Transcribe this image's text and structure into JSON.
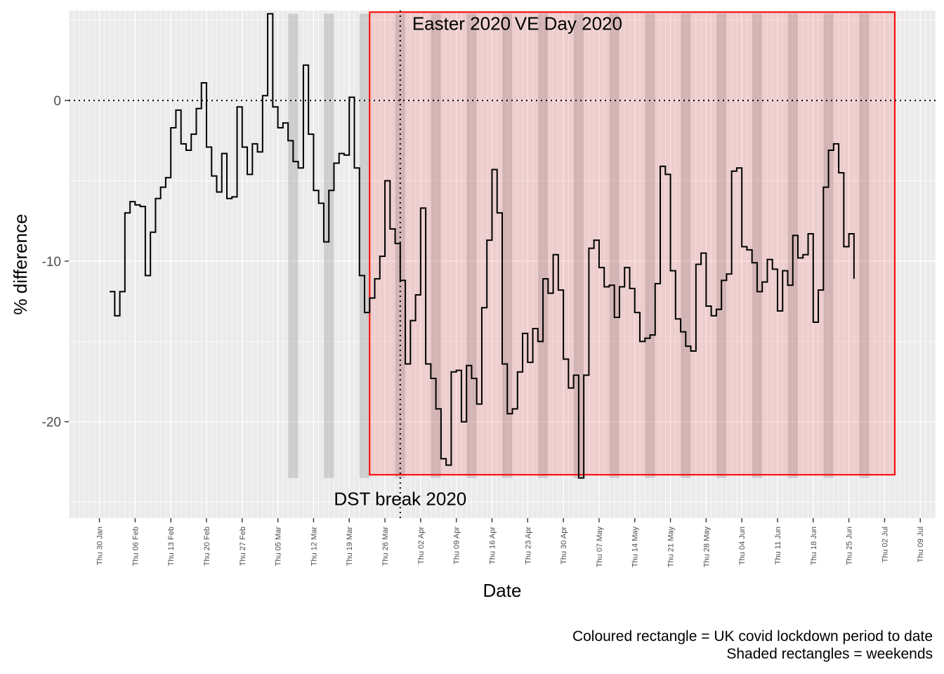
{
  "chart_data": {
    "type": "line",
    "step": true,
    "xlabel": "Date",
    "ylabel": "% difference",
    "x_start": "2020-01-24",
    "x_end": "2020-07-12",
    "ylim": [
      -26,
      5.6
    ],
    "y_ticks": [
      0,
      -10,
      -20
    ],
    "x_ticks": [
      {
        "date": "2020-01-30",
        "label": "Thu 30 Jan"
      },
      {
        "date": "2020-02-06",
        "label": "Thu 06 Feb"
      },
      {
        "date": "2020-02-13",
        "label": "Thu 13 Feb"
      },
      {
        "date": "2020-02-20",
        "label": "Thu 20 Feb"
      },
      {
        "date": "2020-02-27",
        "label": "Thu 27 Feb"
      },
      {
        "date": "2020-03-05",
        "label": "Thu 05 Mar"
      },
      {
        "date": "2020-03-12",
        "label": "Thu 12 Mar"
      },
      {
        "date": "2020-03-19",
        "label": "Thu 19 Mar"
      },
      {
        "date": "2020-03-26",
        "label": "Thu 26 Mar"
      },
      {
        "date": "2020-04-02",
        "label": "Thu 02 Apr"
      },
      {
        "date": "2020-04-09",
        "label": "Thu 09 Apr"
      },
      {
        "date": "2020-04-16",
        "label": "Thu 16 Apr"
      },
      {
        "date": "2020-04-23",
        "label": "Thu 23 Apr"
      },
      {
        "date": "2020-04-30",
        "label": "Thu 30 Apr"
      },
      {
        "date": "2020-05-07",
        "label": "Thu 07 May"
      },
      {
        "date": "2020-05-14",
        "label": "Thu 14 May"
      },
      {
        "date": "2020-05-21",
        "label": "Thu 21 May"
      },
      {
        "date": "2020-05-28",
        "label": "Thu 28 May"
      },
      {
        "date": "2020-06-04",
        "label": "Thu 04 Jun"
      },
      {
        "date": "2020-06-11",
        "label": "Thu 11 Jun"
      },
      {
        "date": "2020-06-18",
        "label": "Thu 18 Jun"
      },
      {
        "date": "2020-06-25",
        "label": "Thu 25 Jun"
      },
      {
        "date": "2020-07-02",
        "label": "Thu 02 Jul"
      },
      {
        "date": "2020-07-09",
        "label": "Thu 09 Jul"
      }
    ],
    "series": [
      {
        "start_date": "2020-02-01",
        "values": [
          -11.9,
          -13.4,
          -11.9,
          -7.0,
          -6.3,
          -6.5,
          -6.6,
          -10.9,
          -8.2,
          -6.1,
          -5.4,
          -4.8,
          -1.7,
          -0.6,
          -2.7,
          -3.1,
          -2.1,
          -0.5,
          1.1,
          -2.9,
          -4.7,
          -5.7,
          -3.3,
          -6.1,
          -6.0,
          -0.4,
          -2.9,
          -4.6,
          -2.7,
          -3.2,
          0.3,
          5.4,
          -0.4,
          -1.7,
          -1.4,
          -2.5,
          -3.8,
          -4.2,
          2.2,
          -2.1,
          -5.6,
          -6.4,
          -8.8,
          -5.6,
          -3.9,
          -3.3,
          -3.4,
          0.2,
          -4.2,
          -10.9,
          -13.2,
          -12.3,
          -11.1,
          -9.7,
          -5.0,
          -8.0,
          -8.9,
          -11.2,
          -16.4,
          -13.7,
          -12.1,
          -6.7,
          -16.4,
          -17.3,
          -19.2,
          -22.3,
          -22.7,
          -16.9,
          -16.8,
          -20.0,
          -16.5,
          -17.3,
          -18.9,
          -12.9,
          -8.7,
          -4.3,
          -7.0,
          -16.4,
          -19.5,
          -19.2,
          -16.9,
          -14.5,
          -16.3,
          -14.2,
          -15.0,
          -11.1,
          -12.0,
          -9.6,
          -11.8,
          -16.1,
          -17.9,
          -17.1,
          -23.5,
          -17.1,
          -9.2,
          -8.7,
          -10.4,
          -11.6,
          -11.5,
          -13.5,
          -11.6,
          -10.4,
          -11.7,
          -13.2,
          -15.0,
          -14.8,
          -14.6,
          -11.4,
          -4.1,
          -4.6,
          -10.6,
          -13.6,
          -14.4,
          -15.3,
          -15.6,
          -10.2,
          -9.5,
          -12.8,
          -13.4,
          -13.0,
          -11.2,
          -10.8,
          -4.4,
          -4.2,
          -9.1,
          -9.3,
          -10.1,
          -11.9,
          -11.3,
          -9.9,
          -10.5,
          -13.1,
          -10.6,
          -11.5,
          -8.4,
          -9.8,
          -9.6,
          -8.3,
          -13.8,
          -11.8,
          -5.4,
          -3.1,
          -2.7,
          -4.5,
          -9.1,
          -8.3,
          -11.1
        ]
      }
    ],
    "weekends": [
      "2020-03-07",
      "2020-03-14",
      "2020-03-21",
      "2020-03-28",
      "2020-04-04",
      "2020-04-11",
      "2020-04-18",
      "2020-04-25",
      "2020-05-02",
      "2020-05-09",
      "2020-05-16",
      "2020-05-23",
      "2020-05-30",
      "2020-06-06",
      "2020-06-13",
      "2020-06-20",
      "2020-06-27"
    ],
    "weekend_y_range": [
      -23.5,
      5.4
    ],
    "lockdown": {
      "start": "2020-03-23",
      "end": "2020-07-04",
      "y_range": [
        -23.3,
        5.5
      ],
      "color": "#ff0000"
    },
    "events": [
      {
        "label": "DST break 2020",
        "date": "2020-03-29",
        "label_date": "2020-03-29",
        "label_y": -24.8,
        "line": true
      },
      {
        "label": "Easter 2020",
        "date": "2020-04-12",
        "label_date": "2020-04-10",
        "label_y": 4.8,
        "line": false
      },
      {
        "label": "VE Day 2020",
        "date": "2020-05-08",
        "label_date": "2020-05-01",
        "label_y": 4.8,
        "line": false
      }
    ],
    "hline": 0
  },
  "captions": [
    "Coloured rectangle = UK covid lockdown period to date",
    "Shaded rectangles = weekends"
  ]
}
